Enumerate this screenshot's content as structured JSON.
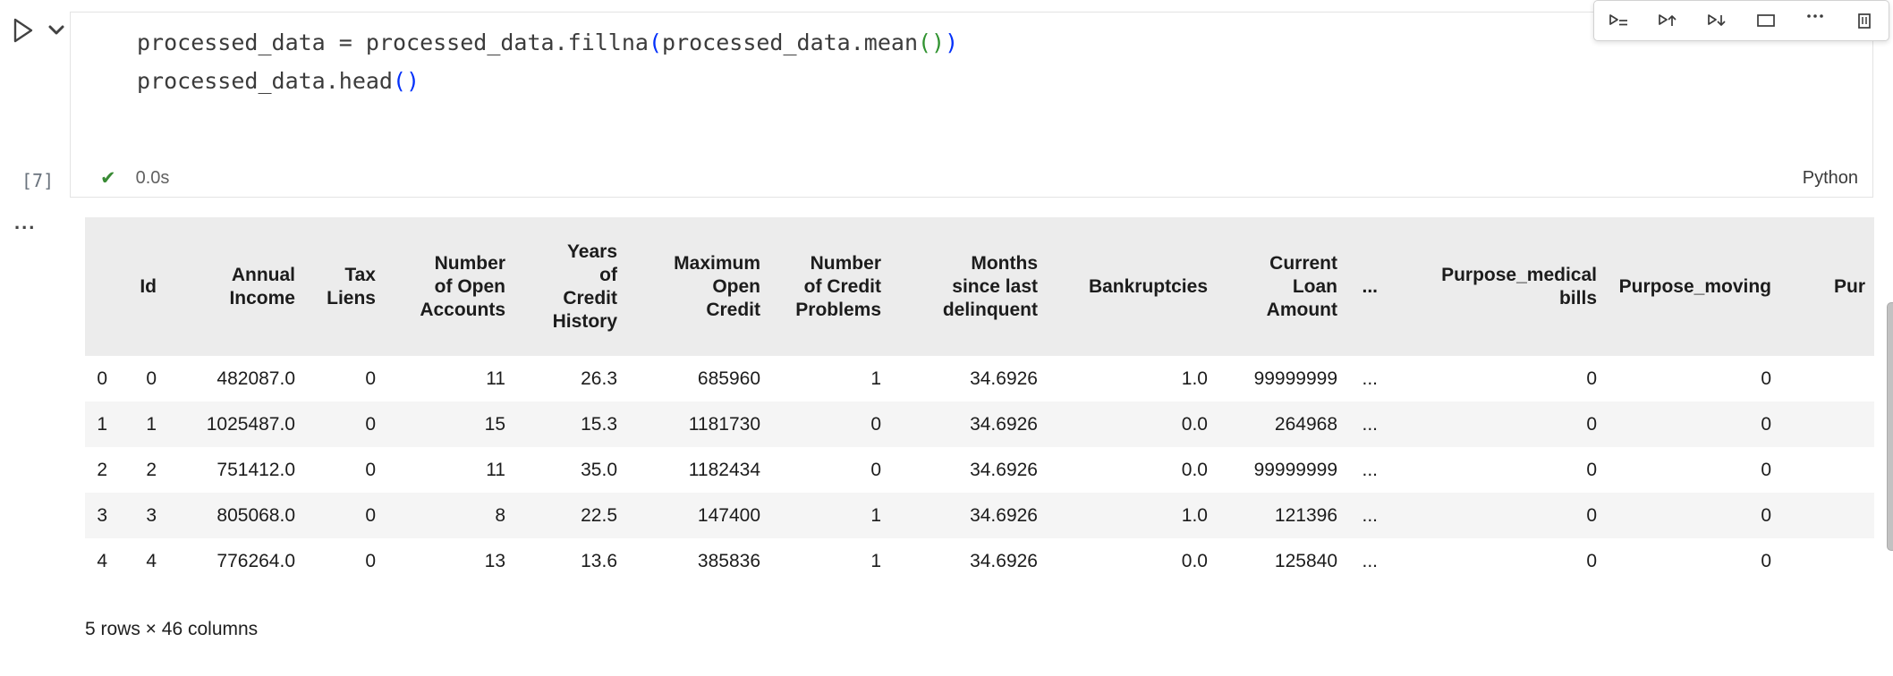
{
  "notebook_cell": {
    "execution_count": "[7]",
    "status": {
      "duration": "0.0s",
      "language": "Python"
    },
    "code_lines": [
      {
        "tokens": [
          {
            "text": "processed_data = processed_data.fillna",
            "style": "code"
          },
          {
            "text": "(",
            "style": "bracket1"
          },
          {
            "text": "processed_data.mean",
            "style": "code"
          },
          {
            "text": "()",
            "style": "bracket2"
          },
          {
            "text": ")",
            "style": "bracket1"
          }
        ]
      },
      {
        "tokens": [
          {
            "text": "processed_data.head",
            "style": "code"
          },
          {
            "text": "()",
            "style": "bracket1"
          }
        ]
      }
    ],
    "toolbar_icons": [
      {
        "name": "run-by-line-icon"
      },
      {
        "name": "execute-above-icon"
      },
      {
        "name": "execute-below-icon"
      },
      {
        "name": "split-cell-icon"
      },
      {
        "name": "more-actions-icon"
      },
      {
        "name": "delete-cell-icon"
      }
    ]
  },
  "output": {
    "collapse_control": "...",
    "dataframe": {
      "columns": [
        {
          "label": ""
        },
        {
          "label": "Id"
        },
        {
          "label": "Annual\nIncome"
        },
        {
          "label": "Tax\nLiens"
        },
        {
          "label": "Number\nof Open\nAccounts"
        },
        {
          "label": "Years\nof\nCredit\nHistory"
        },
        {
          "label": "Maximum\nOpen\nCredit"
        },
        {
          "label": "Number\nof Credit\nProblems"
        },
        {
          "label": "Months\nsince last\ndelinquent"
        },
        {
          "label": "Bankruptcies"
        },
        {
          "label": "Current\nLoan\nAmount"
        },
        {
          "label": "..."
        },
        {
          "label": "Purpose_medical\nbills"
        },
        {
          "label": "Purpose_moving"
        },
        {
          "label": "Pur",
          "clipped": true
        }
      ],
      "rows": [
        [
          "0",
          "0",
          "482087.0",
          "0",
          "11",
          "26.3",
          "685960",
          "1",
          "34.6926",
          "1.0",
          "99999999",
          "...",
          "0",
          "0",
          ""
        ],
        [
          "1",
          "1",
          "1025487.0",
          "0",
          "15",
          "15.3",
          "1181730",
          "0",
          "34.6926",
          "0.0",
          "264968",
          "...",
          "0",
          "0",
          ""
        ],
        [
          "2",
          "2",
          "751412.0",
          "0",
          "11",
          "35.0",
          "1182434",
          "0",
          "34.6926",
          "0.0",
          "99999999",
          "...",
          "0",
          "0",
          ""
        ],
        [
          "3",
          "3",
          "805068.0",
          "0",
          "8",
          "22.5",
          "147400",
          "1",
          "34.6926",
          "1.0",
          "121396",
          "...",
          "0",
          "0",
          ""
        ],
        [
          "4",
          "4",
          "776264.0",
          "0",
          "13",
          "13.6",
          "385836",
          "1",
          "34.6926",
          "0.0",
          "125840",
          "...",
          "0",
          "0",
          ""
        ]
      ],
      "truncation_note": "5 rows × 46 columns"
    }
  },
  "colors": {
    "table_header_bg": "#ececec",
    "table_alt_row_bg": "#f5f5f5",
    "bracket_level1": "#0431fa",
    "bracket_level2": "#319331",
    "success_green": "#388a34",
    "code_foreground": "#3b3b3b",
    "muted_gray": "#616161"
  }
}
